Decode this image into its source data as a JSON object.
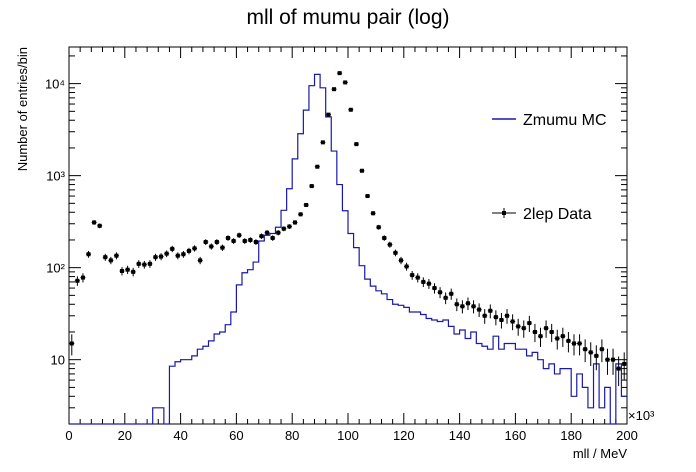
{
  "chart_data": {
    "type": "histogram",
    "title": "mll of mumu pair (log)",
    "xlabel": "mll / MeV",
    "ylabel": "Number of entries/bin",
    "x_multiplier_label": "×10³",
    "xlim": [
      0,
      200
    ],
    "ylim": [
      2,
      25000
    ],
    "yscale": "log",
    "bin_width": 2,
    "x_ticks": [
      0,
      20,
      40,
      60,
      80,
      100,
      120,
      140,
      160,
      180,
      200
    ],
    "x_tick_labels": [
      "0",
      "20",
      "40",
      "60",
      "80",
      "100",
      "120",
      "140",
      "160",
      "180",
      "200"
    ],
    "y_tick_labels": [
      "10",
      "10²",
      "10³",
      "10⁴"
    ],
    "legend_placement": "right",
    "series": [
      {
        "name": "Zmumu MC",
        "style": "histogram-step",
        "color": "#1a1aa8",
        "values": [
          0,
          0,
          0,
          0,
          0,
          0,
          0,
          0,
          0,
          0,
          0,
          0,
          0,
          0,
          2,
          3,
          3,
          2,
          8.5,
          9.5,
          10,
          10,
          11,
          13,
          14,
          16,
          19,
          20,
          24,
          33,
          65,
          88,
          95,
          115,
          195,
          225,
          235,
          275,
          420,
          720,
          1520,
          2850,
          5150,
          9500,
          12600,
          9000,
          4350,
          1850,
          800,
          415,
          235,
          165,
          105,
          75,
          63,
          56,
          52,
          45,
          40,
          39,
          37,
          33,
          33,
          31,
          28,
          27,
          26,
          27,
          23,
          19,
          21,
          17,
          20,
          15,
          14,
          13,
          18,
          13,
          15,
          15,
          13,
          13,
          11,
          12,
          10,
          8,
          9,
          7,
          8,
          8,
          4,
          7,
          5,
          3,
          9,
          3,
          5,
          2,
          9,
          4
        ]
      },
      {
        "name": "2lep Data",
        "style": "points-with-error-bars",
        "color": "#000000",
        "values": [
          15,
          72,
          78,
          140,
          310,
          285,
          130,
          120,
          135,
          92,
          95,
          90,
          110,
          108,
          110,
          130,
          132,
          142,
          160,
          135,
          140,
          152,
          162,
          120,
          190,
          170,
          190,
          165,
          210,
          195,
          225,
          195,
          200,
          190,
          220,
          240,
          210,
          240,
          265,
          280,
          310,
          380,
          480,
          770,
          1250,
          2300,
          4600,
          8700,
          13000,
          10300,
          5200,
          2200,
          1130,
          600,
          390,
          275,
          210,
          178,
          145,
          120,
          103,
          83,
          78,
          70,
          67,
          60,
          54,
          47,
          52,
          40,
          38,
          41,
          38,
          35,
          30,
          34,
          29,
          27,
          30,
          26,
          23,
          22,
          25,
          20,
          18,
          22,
          20,
          17,
          18,
          16,
          15,
          15,
          13,
          12,
          11,
          13,
          10,
          10,
          8,
          9
        ]
      }
    ]
  }
}
